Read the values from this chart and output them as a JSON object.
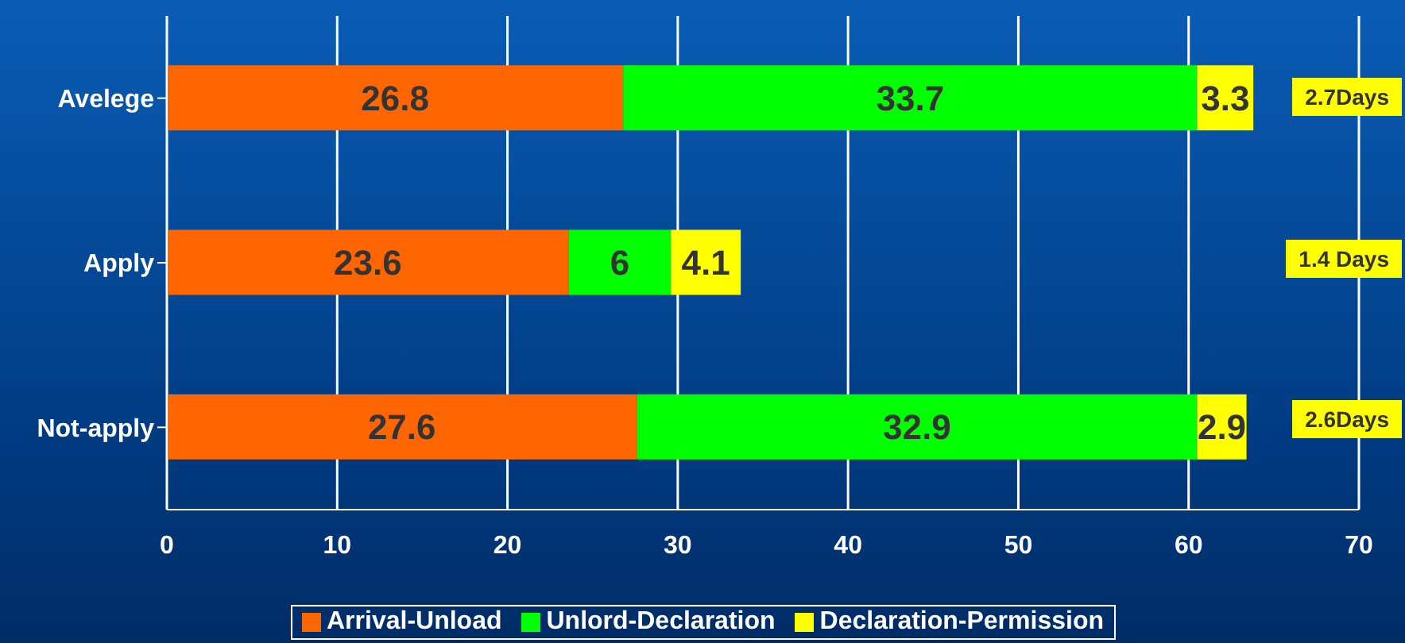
{
  "chart_data": {
    "type": "bar",
    "orientation": "horizontal",
    "stacked": true,
    "categories": [
      "Avelege",
      "Apply",
      "Not-apply"
    ],
    "series": [
      {
        "name": "Arrival-Unload",
        "color": "#ff6600",
        "values": [
          26.8,
          23.6,
          27.6
        ]
      },
      {
        "name": "Unlord-Declaration",
        "color": "#00ff00",
        "values": [
          33.7,
          6,
          32.9
        ]
      },
      {
        "name": "Declaration-Permission",
        "color": "#ffff00",
        "values": [
          3.3,
          4.1,
          2.9
        ]
      }
    ],
    "xlim": [
      0,
      70
    ],
    "xticks": [
      0,
      10,
      20,
      30,
      40,
      50,
      60,
      70
    ],
    "grid": "x",
    "legend": "bottom",
    "data_labels": true,
    "annotations": [
      "2.7Days",
      "1.4 Days",
      "2.6Days"
    ]
  }
}
